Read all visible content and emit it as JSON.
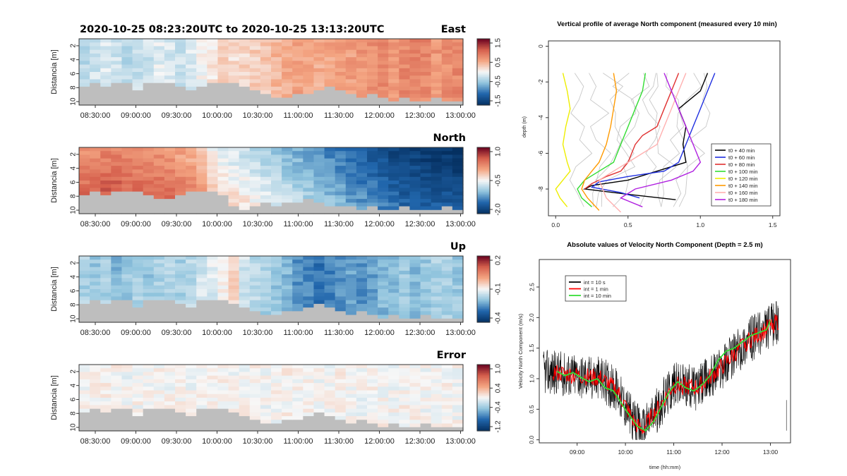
{
  "header": {
    "time_range": "2020-10-25  08:23:20UTC  to  2020-10-25  13:13:20UTC"
  },
  "colors": {
    "no_data": "#bebebe",
    "red_end": "#67001f",
    "blue_end": "#053061",
    "mid": "#f7f7f7"
  },
  "chart_data": [
    {
      "type": "heatmap",
      "title": "East",
      "ylabel": "Distancia [m]",
      "x_ticks": [
        "08:30:00",
        "09:00:00",
        "09:30:00",
        "10:00:00",
        "10:30:00",
        "11:00:00",
        "11:30:00",
        "12:00:00",
        "12:30:00",
        "13:00:00"
      ],
      "y_ticks": [
        "2",
        "4",
        "6",
        "8",
        "10"
      ],
      "colorbar_ticks": [
        "1.5",
        "0.5",
        "-0.5",
        "-1.5"
      ],
      "clim": [
        -1.5,
        1.5
      ],
      "bottom_profile_m": [
        8.0,
        7.5,
        8.0,
        7.5,
        7.5,
        8.5,
        7.5,
        7.5,
        7.5,
        8.0,
        8.5,
        8.0,
        7.5,
        7.5,
        7.5,
        8.0,
        8.5,
        9.0,
        9.5,
        9.5,
        9.0,
        9.0,
        8.5,
        8.0,
        8.5,
        9.0,
        9.5,
        9.0,
        9.5,
        10.0,
        9.5,
        10.0,
        10.0,
        9.5,
        10.0,
        10.0
      ],
      "time_profile": [
        -0.3,
        -0.2,
        -0.15,
        -0.2,
        -0.3,
        -0.25,
        -0.2,
        -0.1,
        -0.15,
        -0.2,
        -0.1,
        0.0,
        0.1,
        0.2,
        0.15,
        0.2,
        0.25,
        0.3,
        0.4,
        0.45,
        0.5,
        0.5,
        0.45,
        0.5,
        0.6,
        0.55,
        0.6,
        0.65,
        0.7,
        0.6,
        0.7,
        0.75,
        0.7,
        0.6,
        0.65,
        0.7
      ]
    },
    {
      "type": "heatmap",
      "title": "North",
      "ylabel": "Distancia [m]",
      "x_ticks": [
        "08:30:00",
        "09:00:00",
        "09:30:00",
        "10:00:00",
        "10:30:00",
        "11:00:00",
        "11:30:00",
        "12:00:00",
        "12:30:00",
        "13:00:00"
      ],
      "y_ticks": [
        "2",
        "4",
        "6",
        "8",
        "10"
      ],
      "colorbar_ticks": [
        "1.0",
        "-0.5",
        "-2.0"
      ],
      "clim": [
        -2.0,
        1.5
      ],
      "bottom_profile_m": [
        8.0,
        7.5,
        8.0,
        7.5,
        7.5,
        7.5,
        8.0,
        8.5,
        8.5,
        8.0,
        7.5,
        7.5,
        7.5,
        8.0,
        9.5,
        10.0,
        9.5,
        9.0,
        9.5,
        9.0,
        9.0,
        8.5,
        9.0,
        9.5,
        9.5,
        9.5,
        10.0,
        9.5,
        10.0,
        10.0,
        9.5,
        10.0,
        10.0,
        10.0,
        9.5,
        10.0
      ],
      "time_profile": [
        0.9,
        0.9,
        1.0,
        1.0,
        0.95,
        0.9,
        0.9,
        0.85,
        0.8,
        0.7,
        0.6,
        0.4,
        0.1,
        -0.1,
        -0.2,
        -0.3,
        -0.4,
        -0.5,
        -0.6,
        -0.7,
        -0.8,
        -0.9,
        -1.0,
        -1.1,
        -1.2,
        -1.3,
        -1.4,
        -1.5,
        -1.6,
        -1.7,
        -1.8,
        -1.8,
        -1.9,
        -1.9,
        -1.9,
        -2.0
      ]
    },
    {
      "type": "heatmap",
      "title": "Up",
      "ylabel": "Distancia [m]",
      "x_ticks": [
        "08:30:00",
        "09:00:00",
        "09:30:00",
        "10:00:00",
        "10:30:00",
        "11:00:00",
        "11:30:00",
        "12:00:00",
        "12:30:00",
        "13:00:00"
      ],
      "y_ticks": [
        "2",
        "4",
        "6",
        "8",
        "10"
      ],
      "colorbar_ticks": [
        "0.2",
        "-0.1",
        "-0.4"
      ],
      "clim": [
        -0.4,
        0.35
      ],
      "bottom_profile_m": [
        8.0,
        7.5,
        8.0,
        7.5,
        7.5,
        8.5,
        7.5,
        7.5,
        7.5,
        8.0,
        8.5,
        7.5,
        7.5,
        7.5,
        8.0,
        8.5,
        9.0,
        9.5,
        9.5,
        9.0,
        9.0,
        8.5,
        8.0,
        8.5,
        9.0,
        9.5,
        9.0,
        9.5,
        10.0,
        9.5,
        10.0,
        10.0,
        9.5,
        10.0,
        10.0,
        10.0
      ],
      "time_profile": [
        -0.1,
        -0.12,
        -0.1,
        -0.15,
        -0.12,
        -0.1,
        -0.12,
        -0.1,
        -0.08,
        -0.1,
        -0.08,
        -0.05,
        -0.03,
        0.0,
        0.05,
        -0.05,
        -0.08,
        -0.1,
        -0.12,
        -0.15,
        -0.2,
        -0.22,
        -0.25,
        -0.22,
        -0.2,
        -0.18,
        -0.2,
        -0.18,
        -0.15,
        -0.15,
        -0.12,
        -0.15,
        -0.12,
        -0.1,
        -0.1,
        -0.12
      ]
    },
    {
      "type": "heatmap",
      "title": "Error",
      "ylabel": "Distancia [m]",
      "x_ticks": [
        "08:30:00",
        "09:00:00",
        "09:30:00",
        "10:00:00",
        "10:30:00",
        "11:00:00",
        "11:30:00",
        "12:00:00",
        "12:30:00",
        "13:00:00"
      ],
      "y_ticks": [
        "2",
        "4",
        "6",
        "8",
        "10"
      ],
      "colorbar_ticks": [
        "1.0",
        "0.4",
        "-0.4",
        "-1.2"
      ],
      "clim": [
        -1.2,
        1.2
      ],
      "bottom_profile_m": [
        8.0,
        7.5,
        8.0,
        7.5,
        7.5,
        8.5,
        7.5,
        7.5,
        7.5,
        8.0,
        8.5,
        7.5,
        7.5,
        7.5,
        8.0,
        8.5,
        9.0,
        9.5,
        9.5,
        9.0,
        9.0,
        8.5,
        8.0,
        8.5,
        9.0,
        9.5,
        9.0,
        9.5,
        10.0,
        9.5,
        10.0,
        10.0,
        9.5,
        10.0,
        10.0,
        10.0
      ],
      "time_profile": [
        0.02,
        0.0,
        0.03,
        0.01,
        -0.02,
        0.0,
        0.02,
        0.01,
        0.0,
        0.02,
        -0.01,
        0.0,
        0.03,
        0.02,
        0.0,
        0.01,
        0.02,
        -0.01,
        0.0,
        0.02,
        0.01,
        0.03,
        0.0,
        0.01,
        0.02,
        0.0,
        -0.01,
        0.02,
        0.01,
        0.0,
        0.02,
        0.01,
        0.0,
        -0.02,
        0.01,
        0.0
      ]
    },
    {
      "type": "line",
      "title": "Vertical profile of average North component (measured every 10 min)",
      "xlabel": "",
      "ylabel": "depth (m)",
      "x_ticks": [
        "0.0",
        "0.5",
        "1.0",
        "1.5"
      ],
      "xlim": [
        -0.05,
        1.55
      ],
      "y_ticks": [
        "0",
        "-2",
        "-4",
        "-6",
        "-8"
      ],
      "ylim": [
        -9.5,
        0.3
      ],
      "legend_position": "bottom-right",
      "series": [
        {
          "name": "t0 + 40 min",
          "color": "#000000",
          "x": [
            1.05,
            1.0,
            0.85,
            0.9,
            0.88,
            0.9,
            0.7,
            0.5,
            0.25,
            0.2,
            0.5,
            0.83
          ],
          "y": [
            -1.5,
            -2.5,
            -3.5,
            -4.5,
            -5.5,
            -6.5,
            -7.0,
            -7.5,
            -7.8,
            -8.0,
            -8.3,
            -8.6
          ]
        },
        {
          "name": "t0 + 60 min",
          "color": "#1f2fe0",
          "x": [
            1.1,
            1.05,
            1.0,
            0.95,
            0.9,
            0.85,
            0.75,
            0.5,
            0.3,
            0.25,
            0.45,
            0.58
          ],
          "y": [
            -1.5,
            -2.5,
            -3.5,
            -4.5,
            -5.5,
            -6.5,
            -7.0,
            -7.3,
            -7.6,
            -7.9,
            -8.2,
            -8.5
          ]
        },
        {
          "name": "t0 + 80 min",
          "color": "#e03030",
          "x": [
            0.85,
            0.8,
            0.75,
            0.7,
            0.6,
            0.55,
            0.5,
            0.45,
            0.35,
            0.25,
            0.2
          ],
          "y": [
            -1.5,
            -2.5,
            -3.5,
            -4.5,
            -5.0,
            -5.5,
            -6.5,
            -7.0,
            -7.3,
            -7.7,
            -8.0
          ]
        },
        {
          "name": "t0 + 100 min",
          "color": "#33dd33",
          "x": [
            0.62,
            0.6,
            0.55,
            0.5,
            0.45,
            0.4,
            0.3,
            0.2,
            0.15,
            0.18,
            0.25
          ],
          "y": [
            -1.5,
            -2.5,
            -3.5,
            -4.5,
            -5.5,
            -6.5,
            -7.0,
            -7.5,
            -8.0,
            -8.5,
            -9.0
          ]
        },
        {
          "name": "t0 + 120 min",
          "color": "#eeee00",
          "x": [
            0.05,
            0.08,
            0.1,
            0.07,
            0.05,
            0.08,
            0.1,
            0.05,
            0.0,
            0.03,
            0.08
          ],
          "y": [
            -1.5,
            -2.5,
            -3.5,
            -4.5,
            -5.5,
            -6.5,
            -7.0,
            -7.5,
            -8.0,
            -8.5,
            -9.0
          ]
        },
        {
          "name": "t0 + 140 min",
          "color": "#ff9a00",
          "x": [
            0.4,
            0.42,
            0.4,
            0.38,
            0.35,
            0.3,
            0.25,
            0.2,
            0.18,
            0.22,
            0.3
          ],
          "y": [
            -1.5,
            -2.5,
            -3.5,
            -4.5,
            -5.5,
            -6.5,
            -7.0,
            -7.5,
            -8.0,
            -8.5,
            -9.2
          ]
        },
        {
          "name": "t0 + 160 min",
          "color": "#ffb0b0",
          "x": [
            0.9,
            0.85,
            0.8,
            0.75,
            0.7,
            0.6,
            0.5,
            0.4,
            0.3,
            0.35,
            0.45
          ],
          "y": [
            -1.5,
            -2.5,
            -3.5,
            -4.5,
            -5.5,
            -6.0,
            -6.5,
            -7.0,
            -7.5,
            -8.5,
            -9.3
          ]
        },
        {
          "name": "t0 + 180 min",
          "color": "#b020e0",
          "x": [
            0.75,
            0.8,
            0.85,
            0.9,
            0.95,
            1.0,
            0.95,
            0.8,
            0.55,
            0.45,
            0.6
          ],
          "y": [
            -1.5,
            -2.5,
            -3.5,
            -4.5,
            -5.5,
            -6.5,
            -7.0,
            -7.5,
            -8.0,
            -8.5,
            -9.0
          ]
        }
      ]
    },
    {
      "type": "line",
      "title": "Absolute values of Velocity North Component (Depth = 2.5 m)",
      "xlabel": "time (hh:mm)",
      "ylabel": "Velocity North Component (m/s)",
      "x_ticks": [
        "09:00",
        "10:00",
        "11:00",
        "12:00",
        "13:00"
      ],
      "xlim": [
        "08:13",
        "13:25"
      ],
      "y_ticks": [
        "0.0",
        "0.5",
        "1.0",
        "1.5",
        "2.0",
        "2.5"
      ],
      "ylim": [
        -0.05,
        2.95
      ],
      "legend_position": "top-left",
      "series": [
        {
          "name": "int = 10 s",
          "color": "#000000",
          "x": [
            "08:30",
            "09:00",
            "09:30",
            "09:50",
            "10:10",
            "10:20",
            "10:40",
            "11:00",
            "11:30",
            "12:00",
            "12:30",
            "13:00",
            "13:10"
          ],
          "y": [
            1.1,
            1.05,
            1.0,
            0.8,
            0.3,
            0.15,
            0.5,
            0.9,
            0.85,
            1.2,
            1.6,
            1.85,
            1.95
          ]
        },
        {
          "name": "int = 1 min",
          "color": "#ff0000",
          "x": [
            "08:30",
            "09:00",
            "09:30",
            "09:50",
            "10:10",
            "10:20",
            "10:40",
            "11:00",
            "11:30",
            "12:00",
            "12:30",
            "13:00",
            "13:10"
          ],
          "y": [
            1.1,
            1.05,
            1.0,
            0.8,
            0.3,
            0.15,
            0.5,
            0.9,
            0.85,
            1.2,
            1.6,
            1.85,
            1.95
          ]
        },
        {
          "name": "int = 10 min",
          "color": "#33dd33",
          "x": [
            "08:35",
            "08:45",
            "08:55",
            "09:05",
            "09:15",
            "09:25",
            "09:35",
            "09:45",
            "09:55",
            "10:05",
            "10:15",
            "10:25",
            "10:35",
            "10:45",
            "10:55",
            "11:05",
            "11:15",
            "11:25",
            "11:35",
            "11:45",
            "11:55",
            "12:05",
            "12:15",
            "12:25",
            "12:35",
            "12:45",
            "12:55",
            "13:00"
          ],
          "y": [
            1.12,
            1.05,
            1.1,
            1.02,
            0.95,
            1.0,
            0.85,
            0.8,
            0.6,
            0.4,
            0.22,
            0.15,
            0.3,
            0.55,
            0.8,
            0.95,
            0.85,
            0.8,
            0.9,
            1.05,
            1.3,
            1.45,
            1.5,
            1.6,
            1.7,
            1.75,
            1.8,
            1.95
          ]
        }
      ]
    }
  ]
}
